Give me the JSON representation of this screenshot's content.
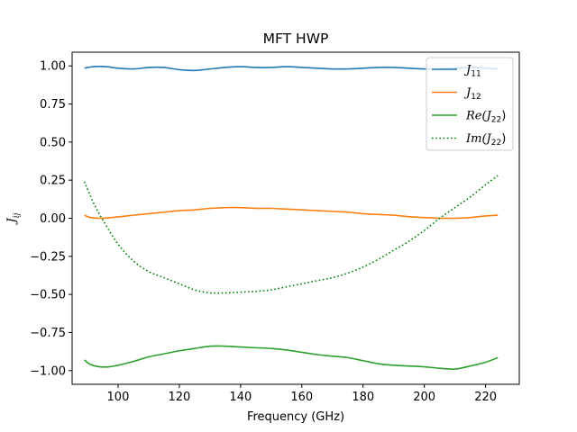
{
  "chart_data": {
    "type": "line",
    "title": "MFT HWP",
    "xlabel": "Frequency (GHz)",
    "ylabel": "J_ij",
    "xlim": [
      85,
      231
    ],
    "ylim": [
      -1.09,
      1.09
    ],
    "xticks": [
      100,
      120,
      140,
      160,
      180,
      200,
      220
    ],
    "yticks": [
      1.0,
      0.75,
      0.5,
      0.25,
      0.0,
      -0.25,
      -0.5,
      -0.75,
      -1.0
    ],
    "ytick_labels": [
      "1.00",
      "0.75",
      "0.50",
      "0.25",
      "0.00",
      "−0.25",
      "−0.50",
      "−0.75",
      "−1.00"
    ],
    "grid": false,
    "legend_position": "top-right",
    "series": [
      {
        "name": "J11",
        "legend": {
          "base": "J",
          "sub": "11"
        },
        "color": "#1f77b4",
        "style": "solid",
        "x": [
          89,
          92,
          96,
          100,
          105,
          110,
          115,
          120,
          125,
          130,
          135,
          140,
          145,
          150,
          155,
          160,
          165,
          170,
          175,
          180,
          185,
          190,
          195,
          200,
          205,
          210,
          215,
          220,
          224
        ],
        "y": [
          0.985,
          0.995,
          0.995,
          0.985,
          0.98,
          0.99,
          0.99,
          0.975,
          0.97,
          0.98,
          0.99,
          0.995,
          0.99,
          0.99,
          0.995,
          0.99,
          0.985,
          0.98,
          0.98,
          0.985,
          0.99,
          0.99,
          0.985,
          0.98,
          0.98,
          0.985,
          0.99,
          0.985,
          0.98
        ]
      },
      {
        "name": "J12",
        "legend": {
          "base": "J",
          "sub": "12"
        },
        "color": "#ff7f0e",
        "style": "solid",
        "x": [
          89,
          91,
          95,
          98,
          105,
          110,
          115,
          120,
          125,
          130,
          135,
          140,
          145,
          150,
          155,
          160,
          165,
          170,
          175,
          180,
          185,
          190,
          195,
          200,
          205,
          210,
          215,
          220,
          224
        ],
        "y": [
          0.02,
          0.005,
          0.0,
          0.005,
          0.02,
          0.03,
          0.04,
          0.05,
          0.055,
          0.065,
          0.07,
          0.07,
          0.065,
          0.065,
          0.06,
          0.055,
          0.05,
          0.045,
          0.04,
          0.03,
          0.025,
          0.02,
          0.01,
          0.005,
          0.0,
          0.0,
          0.005,
          0.015,
          0.02
        ]
      },
      {
        "name": "Re(J22)",
        "legend": {
          "pre": "Re(",
          "base": "J",
          "sub": "22",
          "post": ")"
        },
        "color": "#2ca02c",
        "style": "solid",
        "x": [
          89,
          91,
          94,
          97,
          100,
          105,
          110,
          115,
          120,
          125,
          130,
          135,
          140,
          145,
          150,
          155,
          160,
          165,
          170,
          175,
          180,
          185,
          190,
          195,
          200,
          205,
          210,
          215,
          220,
          224
        ],
        "y": [
          -0.93,
          -0.96,
          -0.975,
          -0.975,
          -0.965,
          -0.94,
          -0.91,
          -0.89,
          -0.87,
          -0.855,
          -0.84,
          -0.84,
          -0.845,
          -0.85,
          -0.855,
          -0.865,
          -0.88,
          -0.895,
          -0.905,
          -0.915,
          -0.935,
          -0.955,
          -0.965,
          -0.97,
          -0.975,
          -0.985,
          -0.99,
          -0.97,
          -0.945,
          -0.915
        ]
      },
      {
        "name": "Im(J22)",
        "legend": {
          "pre": "Im(",
          "base": "J",
          "sub": "22",
          "post": ")"
        },
        "color": "#008000",
        "style": "dotted",
        "x": [
          89,
          92,
          95,
          100,
          105,
          110,
          115,
          120,
          125,
          130,
          135,
          140,
          145,
          150,
          155,
          160,
          165,
          170,
          175,
          180,
          185,
          190,
          195,
          200,
          205,
          210,
          215,
          220,
          224
        ],
        "y": [
          0.24,
          0.1,
          -0.01,
          -0.17,
          -0.28,
          -0.35,
          -0.39,
          -0.43,
          -0.47,
          -0.49,
          -0.49,
          -0.485,
          -0.48,
          -0.47,
          -0.45,
          -0.43,
          -0.41,
          -0.39,
          -0.36,
          -0.32,
          -0.27,
          -0.21,
          -0.15,
          -0.08,
          0.0,
          0.07,
          0.14,
          0.22,
          0.28
        ]
      }
    ]
  }
}
